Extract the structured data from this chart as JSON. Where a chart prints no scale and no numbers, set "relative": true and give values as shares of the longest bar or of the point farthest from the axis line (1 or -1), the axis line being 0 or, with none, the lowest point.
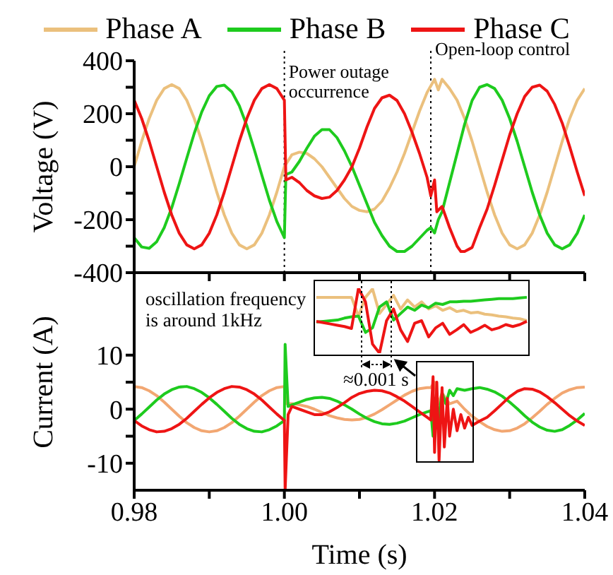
{
  "chart_data": [
    {
      "type": "line",
      "ylabel": "Voltage (V)",
      "xlim": [
        0.98,
        1.04
      ],
      "xticks": [
        {
          "value": 0.98,
          "label": null
        },
        {
          "value": 0.99,
          "label": null
        },
        {
          "value": 1,
          "label": null
        },
        {
          "value": 1.01,
          "label": null
        },
        {
          "value": 1.02,
          "label": null
        },
        {
          "value": 1.03,
          "label": null
        },
        {
          "value": 1.04,
          "label": null
        }
      ],
      "ylim": [
        -400,
        400
      ],
      "yticks": [
        -400,
        {
          "value": -300,
          "label": null
        },
        -200,
        {
          "value": -100,
          "label": null
        },
        0,
        {
          "value": 100,
          "label": null
        },
        200,
        {
          "value": 300,
          "label": null
        },
        400
      ],
      "tick_labels": "y",
      "legend": "top",
      "ref_lines": [
        {
          "axis": "x",
          "value": 1.0,
          "label": "Power outage occurrence",
          "line_style": "dotted"
        },
        {
          "axis": "x",
          "value": 1.0195,
          "label": "Open-loop control",
          "line_style": "dotted"
        }
      ],
      "series": [
        {
          "name": "Phase A",
          "color": "#ebc07d",
          "x": [
            0.98,
            0.981,
            0.982,
            0.983,
            0.984,
            0.985,
            0.986,
            0.987,
            0.988,
            0.989,
            0.99,
            0.991,
            0.992,
            0.993,
            0.994,
            0.995,
            0.996,
            0.997,
            0.998,
            0.999,
            1.0,
            1.001,
            1.002,
            1.003,
            1.004,
            1.005,
            1.006,
            1.007,
            1.008,
            1.009,
            1.01,
            1.011,
            1.012,
            1.013,
            1.014,
            1.015,
            1.016,
            1.017,
            1.018,
            1.019,
            1.02,
            1.0205,
            1.021,
            1.022,
            1.023,
            1.024,
            1.025,
            1.026,
            1.027,
            1.028,
            1.029,
            1.03,
            1.031,
            1.032,
            1.033,
            1.034,
            1.035,
            1.036,
            1.037,
            1.038,
            1.039,
            1.04
          ],
          "values": [
            0,
            96,
            182,
            251,
            295,
            310,
            295,
            251,
            182,
            96,
            0,
            -96,
            -182,
            -251,
            -295,
            -310,
            -295,
            -251,
            -182,
            -96,
            0,
            45,
            55,
            50,
            30,
            0,
            -40,
            -80,
            -120,
            -150,
            -165,
            -170,
            -160,
            -130,
            -80,
            -20,
            50,
            130,
            210,
            280,
            330,
            290,
            330,
            295,
            251,
            182,
            96,
            0,
            -96,
            -182,
            -251,
            -295,
            -310,
            -295,
            -251,
            -182,
            -96,
            0,
            96,
            182,
            251,
            295
          ]
        },
        {
          "name": "Phase B",
          "color": "#1ecb1e",
          "x": [
            0.98,
            0.981,
            0.982,
            0.983,
            0.984,
            0.985,
            0.986,
            0.987,
            0.988,
            0.989,
            0.99,
            0.991,
            0.992,
            0.993,
            0.994,
            0.995,
            0.996,
            0.997,
            0.998,
            0.999,
            1.0,
            1.0002,
            1.001,
            1.002,
            1.003,
            1.004,
            1.005,
            1.006,
            1.007,
            1.008,
            1.009,
            1.01,
            1.011,
            1.012,
            1.013,
            1.014,
            1.015,
            1.016,
            1.017,
            1.018,
            1.019,
            1.0195,
            1.02,
            1.0205,
            1.021,
            1.022,
            1.023,
            1.024,
            1.025,
            1.026,
            1.027,
            1.028,
            1.029,
            1.03,
            1.031,
            1.032,
            1.033,
            1.034,
            1.035,
            1.036,
            1.037,
            1.038,
            1.039,
            1.04
          ],
          "values": [
            -268,
            -303,
            -308,
            -283,
            -230,
            -155,
            -64,
            32,
            126,
            207,
            268,
            303,
            308,
            283,
            230,
            155,
            64,
            -32,
            -126,
            -207,
            -268,
            -30,
            -20,
            20,
            70,
            115,
            140,
            140,
            110,
            60,
            0,
            -70,
            -140,
            -210,
            -260,
            -300,
            -320,
            -320,
            -300,
            -270,
            -240,
            -230,
            -250,
            -200,
            -170,
            -60,
            50,
            160,
            250,
            300,
            310,
            295,
            251,
            182,
            96,
            0,
            -96,
            -182,
            -251,
            -295,
            -310,
            -295,
            -251,
            -182
          ]
        },
        {
          "name": "Phase C",
          "color": "#ee1414",
          "x": [
            0.98,
            0.981,
            0.982,
            0.983,
            0.984,
            0.985,
            0.986,
            0.987,
            0.988,
            0.989,
            0.99,
            0.991,
            0.992,
            0.993,
            0.994,
            0.995,
            0.996,
            0.997,
            0.998,
            0.999,
            1.0,
            1.0002,
            1.001,
            1.002,
            1.003,
            1.004,
            1.005,
            1.006,
            1.007,
            1.008,
            1.009,
            1.01,
            1.011,
            1.012,
            1.013,
            1.014,
            1.015,
            1.016,
            1.017,
            1.018,
            1.019,
            1.0195,
            1.02,
            1.0203,
            1.021,
            1.022,
            1.023,
            1.0235,
            1.024,
            1.025,
            1.026,
            1.027,
            1.028,
            1.029,
            1.03,
            1.031,
            1.032,
            1.033,
            1.034,
            1.035,
            1.036,
            1.037,
            1.038,
            1.039,
            1.04
          ],
          "values": [
            251,
            182,
            96,
            0,
            -96,
            -182,
            -251,
            -295,
            -310,
            -295,
            -251,
            -182,
            -96,
            0,
            96,
            182,
            251,
            295,
            310,
            295,
            251,
            -50,
            -40,
            -60,
            -90,
            -110,
            -120,
            -115,
            -90,
            -50,
            0,
            70,
            150,
            220,
            260,
            270,
            250,
            200,
            130,
            50,
            -40,
            -110,
            -50,
            -170,
            -150,
            -230,
            -300,
            -320,
            -320,
            -305,
            -230,
            -160,
            -70,
            25,
            120,
            200,
            265,
            300,
            308,
            285,
            235,
            165,
            75,
            -20,
            -110
          ]
        }
      ]
    },
    {
      "type": "line",
      "xlabel": "Time (s)",
      "ylabel": "Current (A)",
      "xlim": [
        0.98,
        1.04
      ],
      "xticks": [
        0.98,
        {
          "value": 0.99,
          "label": null
        },
        {
          "value": 1,
          "label": "1.00"
        },
        {
          "value": 1.01,
          "label": null
        },
        1.02,
        {
          "value": 1.03,
          "label": null
        },
        1.04
      ],
      "ylim": [
        -15,
        25
      ],
      "yticks": [
        -10,
        {
          "value": -5,
          "label": null
        },
        0,
        {
          "value": 5,
          "label": null
        },
        10
      ],
      "annotations": [
        "oscillation frequency is around 1kHz"
      ],
      "series": [
        {
          "color": "#f2a772",
          "x": [
            0.98,
            0.981,
            0.982,
            0.983,
            0.984,
            0.985,
            0.986,
            0.987,
            0.988,
            0.989,
            0.99,
            0.991,
            0.992,
            0.993,
            0.994,
            0.995,
            0.996,
            0.997,
            0.998,
            0.999,
            1.0,
            1.0002,
            1.001,
            1.002,
            1.003,
            1.004,
            1.005,
            1.006,
            1.007,
            1.008,
            1.009,
            1.01,
            1.011,
            1.012,
            1.013,
            1.014,
            1.015,
            1.016,
            1.017,
            1.018,
            1.019,
            1.0195,
            1.02,
            1.0205,
            1.021,
            1.022,
            1.023,
            1.024,
            1.025,
            1.026,
            1.027,
            1.028,
            1.029,
            1.03,
            1.031,
            1.032,
            1.033,
            1.034,
            1.035,
            1.036,
            1.037,
            1.038,
            1.039,
            1.04
          ],
          "values": [
            4.2,
            4.0,
            3.4,
            2.5,
            1.3,
            0,
            -1.3,
            -2.5,
            -3.4,
            -4.0,
            -4.2,
            -4.0,
            -3.4,
            -2.5,
            -1.3,
            0,
            1.3,
            2.5,
            3.4,
            4.0,
            4.2,
            1,
            1.0,
            0.8,
            0.5,
            0,
            -0.6,
            -1.2,
            -1.6,
            -1.9,
            -2.0,
            -1.9,
            -1.5,
            -0.9,
            -0.1,
            0.8,
            1.7,
            2.6,
            3.3,
            3.8,
            4.0,
            4.0,
            5,
            1,
            3,
            1,
            1.5,
            0,
            -1.3,
            -2.3,
            -3.2,
            -3.8,
            -4.1,
            -4.0,
            -3.5,
            -2.7,
            -1.6,
            -0.4,
            0.9,
            2.0,
            3.0,
            3.6,
            4.0,
            4.1
          ]
        },
        {
          "color": "#1ecb1e",
          "x": [
            0.98,
            0.981,
            0.982,
            0.983,
            0.984,
            0.985,
            0.986,
            0.987,
            0.988,
            0.989,
            0.99,
            0.991,
            0.992,
            0.993,
            0.994,
            0.995,
            0.996,
            0.997,
            0.998,
            0.999,
            1.0,
            1.0001,
            1.0005,
            1.001,
            1.002,
            1.003,
            1.004,
            1.005,
            1.006,
            1.007,
            1.008,
            1.009,
            1.01,
            1.011,
            1.012,
            1.013,
            1.014,
            1.015,
            1.016,
            1.017,
            1.018,
            1.019,
            1.0195,
            1.0198,
            1.0201,
            1.0205,
            1.021,
            1.0215,
            1.022,
            1.0225,
            1.023,
            1.024,
            1.025,
            1.026,
            1.027,
            1.028,
            1.029,
            1.03,
            1.031,
            1.032,
            1.033,
            1.034,
            1.035,
            1.036,
            1.037,
            1.038,
            1.039,
            1.04
          ],
          "values": [
            -2.1,
            -0.9,
            0.4,
            1.7,
            2.8,
            3.6,
            4.1,
            4.2,
            3.8,
            3.1,
            2.1,
            0.9,
            -0.4,
            -1.7,
            -2.8,
            -3.6,
            -4.1,
            -4.2,
            -3.8,
            -3.1,
            -2.1,
            12,
            0.5,
            0.8,
            1.3,
            1.8,
            2.1,
            2.2,
            2.0,
            1.5,
            0.8,
            0,
            -0.9,
            -1.7,
            -2.3,
            -2.7,
            -2.8,
            -2.6,
            -2.2,
            -1.6,
            -1.0,
            -0.5,
            -0.3,
            -5,
            2,
            -2,
            3,
            1,
            3.5,
            2.5,
            3.8,
            3.5,
            3.8,
            4.0,
            3.7,
            3.2,
            2.4,
            1.3,
            0.1,
            -1.2,
            -2.4,
            -3.3,
            -3.9,
            -4.1,
            -3.8,
            -3.0,
            -2.0,
            -0.8
          ]
        },
        {
          "color": "#ee1414",
          "x": [
            0.98,
            0.981,
            0.982,
            0.983,
            0.984,
            0.985,
            0.986,
            0.987,
            0.988,
            0.989,
            0.99,
            0.991,
            0.992,
            0.993,
            0.994,
            0.995,
            0.996,
            0.997,
            0.998,
            0.999,
            1.0,
            1.0001,
            1.0005,
            1.001,
            1.002,
            1.003,
            1.004,
            1.005,
            1.006,
            1.007,
            1.008,
            1.009,
            1.01,
            1.011,
            1.012,
            1.013,
            1.014,
            1.015,
            1.016,
            1.017,
            1.018,
            1.019,
            1.0195,
            1.0198,
            1.02,
            1.0203,
            1.0206,
            1.021,
            1.0213,
            1.0217,
            1.022,
            1.0225,
            1.023,
            1.0235,
            1.024,
            1.0245,
            1.025,
            1.026,
            1.027,
            1.028,
            1.029,
            1.03,
            1.031,
            1.032,
            1.033,
            1.034,
            1.035,
            1.036,
            1.037,
            1.038,
            1.039,
            1.04
          ],
          "values": [
            -2.1,
            -3.1,
            -3.8,
            -4.2,
            -4.1,
            -3.6,
            -2.8,
            -1.7,
            -0.4,
            0.9,
            2.1,
            3.1,
            3.8,
            4.2,
            4.1,
            3.6,
            2.8,
            1.7,
            0.4,
            -0.9,
            -2.1,
            -15,
            -1,
            0.5,
            0,
            -0.5,
            -1,
            -1,
            -0.5,
            0.3,
            1.2,
            2.2,
            2.9,
            3.3,
            3.5,
            3.4,
            3.0,
            2.3,
            1.5,
            0.5,
            -0.5,
            -1.5,
            -2,
            6,
            -8,
            5,
            -9.5,
            4,
            -7,
            2,
            -5,
            0,
            -4,
            -1,
            -3.5,
            -1.5,
            -3,
            -2.2,
            -1.5,
            -0.3,
            1.0,
            2.3,
            3.3,
            3.8,
            3.7,
            3.2,
            2.3,
            1.2,
            0,
            -1.2,
            -2.2,
            -3.0
          ]
        }
      ]
    },
    {
      "type": "line",
      "relative": true,
      "categories": [
        null,
        null,
        null,
        null,
        null,
        null,
        null,
        null,
        null,
        null,
        null,
        null,
        null,
        null,
        null,
        null,
        null,
        null,
        null,
        null,
        null,
        null,
        null,
        null,
        null,
        null,
        null,
        null,
        null,
        null,
        null
      ],
      "annotations": [
        "≈0.001 s"
      ],
      "series": [
        {
          "color": "#ebc07d",
          "values": [
            0.86,
            0.86,
            0.86,
            0.86,
            0.86,
            0.86,
            0.57,
            0.86,
            0.99,
            0.61,
            0.75,
            0.89,
            0.68,
            0.82,
            0.71,
            0.79,
            0.68,
            0.73,
            0.66,
            0.7,
            0.64,
            0.66,
            0.62,
            0.63,
            0.6,
            0.59,
            0.57,
            0.56,
            0.54,
            0.53,
            0.5
          ]
        },
        {
          "color": "#1ecb1e",
          "values": [
            0.48,
            0.49,
            0.5,
            0.51,
            0.54,
            0.56,
            0.57,
            0.32,
            0.39,
            0.71,
            0.79,
            0.51,
            0.61,
            0.71,
            0.66,
            0.74,
            0.7,
            0.77,
            0.75,
            0.79,
            0.79,
            0.8,
            0.8,
            0.81,
            0.82,
            0.83,
            0.84,
            0.84,
            0.84,
            0.85,
            0.86
          ]
        },
        {
          "color": "#ee1414",
          "values": [
            0.49,
            0.47,
            0.45,
            0.43,
            0.41,
            0.38,
            1.0,
            0.79,
            0.14,
            0,
            0.5,
            0.68,
            0.36,
            0.18,
            0.46,
            0.5,
            0.25,
            0.39,
            0.46,
            0.29,
            0.36,
            0.44,
            0.32,
            0.37,
            0.43,
            0.36,
            0.39,
            0.44,
            0.41,
            0.44,
            0.49
          ]
        }
      ]
    }
  ]
}
